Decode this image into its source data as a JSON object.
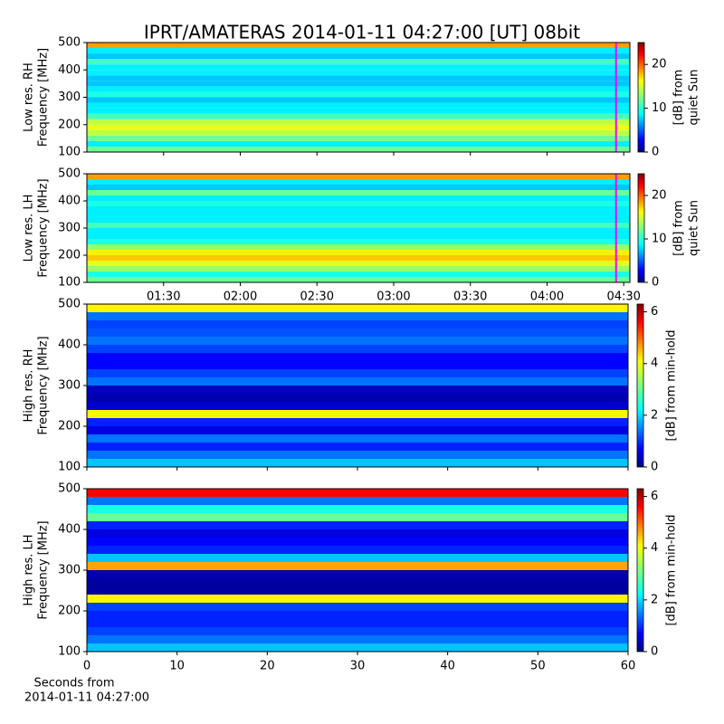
{
  "title": "IPRT/AMATERAS 2014-01-11 04:27:00 [UT]   08bit",
  "chart_data": [
    {
      "type": "heatmap",
      "ylabel": [
        "Low res. RH",
        "Frequency [MHz]"
      ],
      "ylim": [
        100,
        500
      ],
      "yticks": [
        100,
        200,
        300,
        400,
        500
      ],
      "xlim": [
        1.0,
        4.54
      ],
      "xticks": [
        {
          "value": 1.5,
          "label": "01:30"
        },
        {
          "value": 2.0,
          "label": "02:00"
        },
        {
          "value": 2.5,
          "label": "02:30"
        },
        {
          "value": 3.0,
          "label": "03:00"
        },
        {
          "value": 3.5,
          "label": "03:30"
        },
        {
          "value": 4.0,
          "label": "04:00"
        },
        {
          "value": 4.5,
          "label": "04:30"
        }
      ],
      "show_xticklabels": false,
      "y_bins": [
        100,
        120,
        140,
        160,
        180,
        200,
        220,
        240,
        260,
        280,
        300,
        320,
        340,
        360,
        380,
        400,
        420,
        440,
        460,
        480,
        500
      ],
      "values": [
        12,
        9,
        12,
        14,
        15,
        14,
        11,
        9,
        9,
        8,
        10,
        9,
        8,
        8,
        9,
        9,
        11,
        8,
        9,
        18
      ],
      "colormap": "jet",
      "clim": [
        0,
        25
      ],
      "cticks": [
        0,
        10,
        20
      ],
      "clabel": [
        "[dB] from",
        "quiet Sun"
      ],
      "cursor": 4.45,
      "cursor_color": "#ff00ff"
    },
    {
      "type": "heatmap",
      "ylabel": [
        "Low res. LH",
        "Frequency [MHz]"
      ],
      "ylim": [
        100,
        500
      ],
      "yticks": [
        100,
        200,
        300,
        400,
        500
      ],
      "xlim": [
        1.0,
        4.54
      ],
      "xticks": [
        {
          "value": 1.5,
          "label": "01:30"
        },
        {
          "value": 2.0,
          "label": "02:00"
        },
        {
          "value": 2.5,
          "label": "02:30"
        },
        {
          "value": 3.0,
          "label": "03:00"
        },
        {
          "value": 3.5,
          "label": "03:30"
        },
        {
          "value": 4.0,
          "label": "04:00"
        },
        {
          "value": 4.5,
          "label": "04:30"
        }
      ],
      "show_xticklabels": true,
      "y_bins": [
        100,
        120,
        140,
        160,
        180,
        200,
        220,
        240,
        260,
        280,
        300,
        320,
        340,
        360,
        380,
        400,
        420,
        440,
        460,
        480,
        500
      ],
      "values": [
        12,
        10,
        13,
        15,
        17,
        16,
        13,
        10,
        9,
        9,
        11,
        9,
        9,
        9,
        10,
        9,
        12,
        8,
        9,
        18
      ],
      "colormap": "jet",
      "clim": [
        0,
        25
      ],
      "cticks": [
        0,
        10,
        20
      ],
      "clabel": [
        "[dB] from",
        "quiet Sun"
      ],
      "cursor": 4.45,
      "cursor_color": "#ff00ff"
    },
    {
      "type": "heatmap",
      "ylabel": [
        "High res. RH",
        "Frequency [MHz]"
      ],
      "ylim": [
        100,
        500
      ],
      "yticks": [
        100,
        200,
        300,
        400,
        500
      ],
      "xlim": [
        0,
        60
      ],
      "xticks": [
        0,
        10,
        20,
        30,
        40,
        50,
        60
      ],
      "show_xticklabels": false,
      "y_bins": [
        100,
        120,
        140,
        160,
        180,
        200,
        220,
        240,
        260,
        280,
        300,
        320,
        340,
        360,
        380,
        400,
        420,
        440,
        460,
        480,
        500
      ],
      "values": [
        2,
        1.5,
        1,
        1.5,
        0.6,
        1,
        4,
        0.5,
        0.3,
        0.4,
        1.5,
        1.2,
        0.8,
        0.8,
        1.2,
        1.5,
        1.3,
        1.2,
        1.5,
        4
      ],
      "colormap": "jet",
      "clim": [
        0,
        6.3
      ],
      "cticks": [
        0,
        2,
        4,
        6
      ],
      "clabel": [
        "[dB] from min-hold"
      ]
    },
    {
      "type": "heatmap",
      "ylabel": [
        "High res. LH",
        "Frequency [MHz]"
      ],
      "ylim": [
        100,
        500
      ],
      "yticks": [
        100,
        200,
        300,
        400,
        500
      ],
      "xlim": [
        0,
        60
      ],
      "xticks": [
        0,
        10,
        20,
        30,
        40,
        50,
        60
      ],
      "show_xticklabels": true,
      "xlabel": [
        "Seconds from",
        "2014-01-11 04:27:00"
      ],
      "y_bins": [
        100,
        120,
        140,
        160,
        180,
        200,
        220,
        240,
        260,
        280,
        300,
        320,
        340,
        360,
        380,
        400,
        420,
        440,
        460,
        480,
        500
      ],
      "values": [
        2,
        1.5,
        1.2,
        1,
        1,
        1.2,
        4,
        0.2,
        0.2,
        0.3,
        4.5,
        2,
        1,
        0.8,
        0.6,
        1,
        3,
        2.5,
        1.5,
        5.5
      ],
      "colormap": "jet",
      "clim": [
        0,
        6.3
      ],
      "cticks": [
        0,
        2,
        4,
        6
      ],
      "clabel": [
        "[dB] from min-hold"
      ]
    }
  ]
}
